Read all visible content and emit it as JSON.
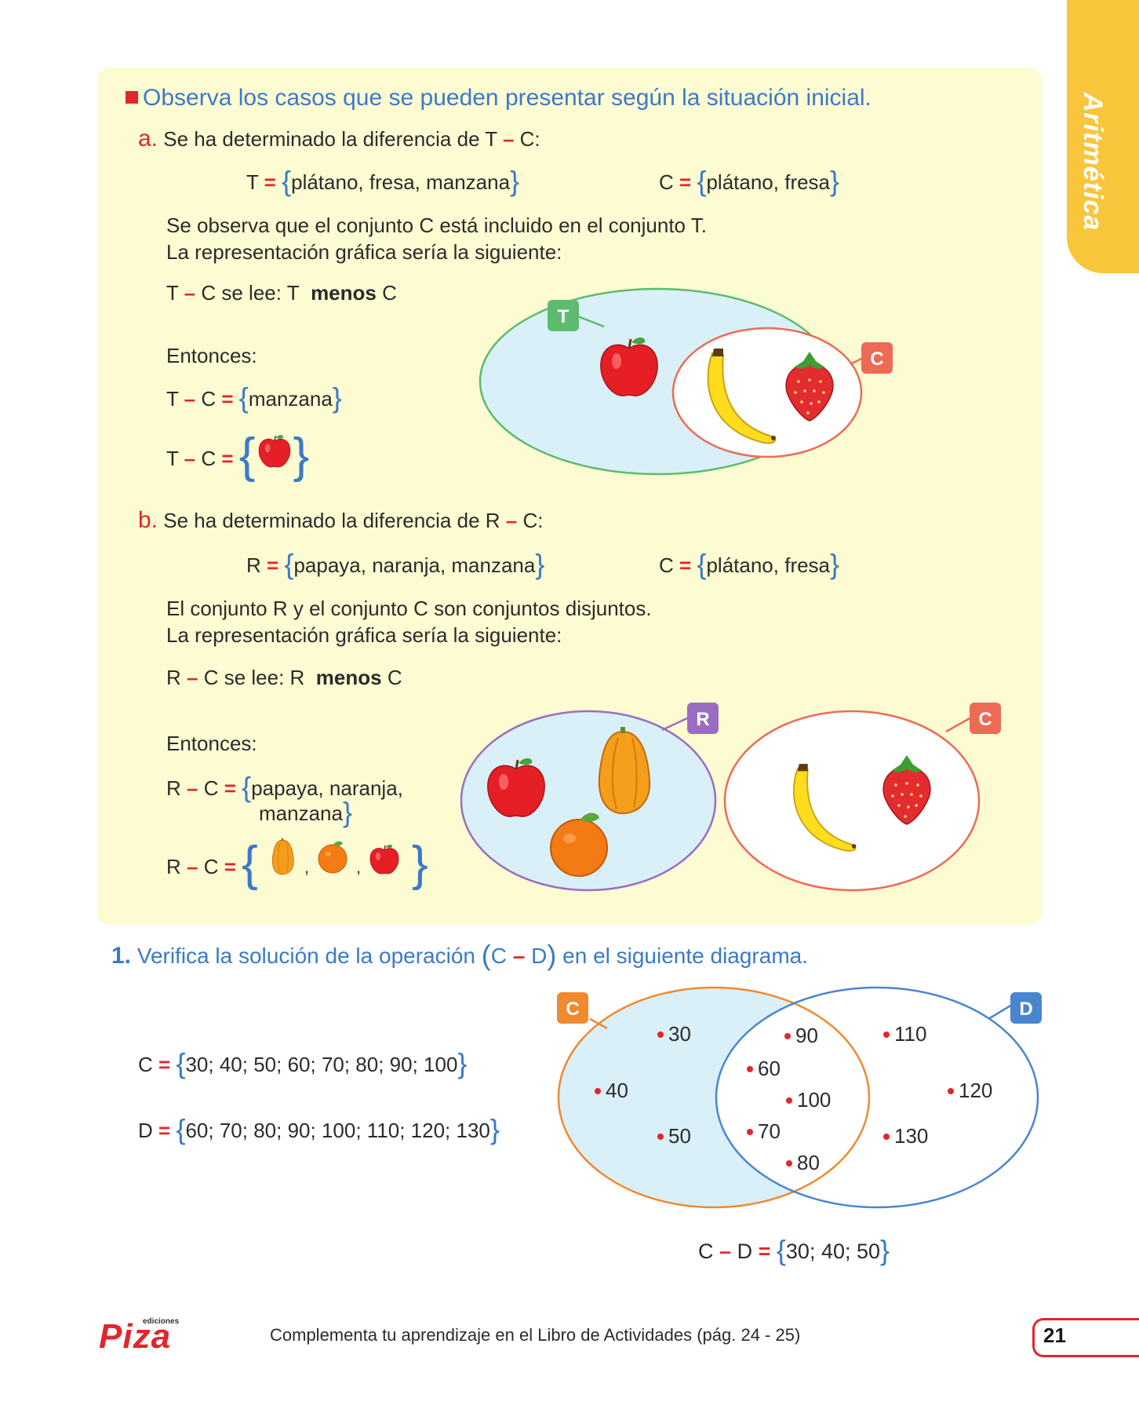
{
  "side_tab": "Aritmética",
  "heading": "Observa los casos que se pueden presentar según la situación inicial.",
  "case_a": {
    "letter": "a.",
    "intro": "Se ha determinado la diferencia de T",
    "intro_end": "C:",
    "set_T_name": "T",
    "set_T_elems": "plátano, fresa, manzana",
    "set_C_name": "C",
    "set_C_elems": "plátano, fresa",
    "obs1": "Se observa que el conjunto C está incluido en el conjunto T.",
    "obs2": "La representación gráfica sería la siguiente:",
    "read_a": "T",
    "read_b": "C se lee: T",
    "read_menos": "menos",
    "read_c": "C",
    "entonces": "Entonces:",
    "res_lhs_a": "T",
    "res_lhs_b": "C",
    "res_elems": "manzana",
    "label_T": "T",
    "label_C": "C"
  },
  "case_b": {
    "letter": "b.",
    "intro": "Se ha determinado la diferencia de R",
    "intro_end": "C:",
    "set_R_name": "R",
    "set_R_elems": "papaya, naranja, manzana",
    "set_C_name": "C",
    "set_C_elems": "plátano, fresa",
    "obs1": "El conjunto R y el conjunto C son conjuntos disjuntos.",
    "obs2": "La representación gráfica sería la siguiente:",
    "read_a": "R",
    "read_b": "C se lee: R",
    "read_menos": "menos",
    "read_c": "C",
    "entonces": "Entonces:",
    "res_lhs_a": "R",
    "res_lhs_b": "C",
    "res_elems_1": "papaya, naranja,",
    "res_elems_2": "manzana",
    "label_R": "R",
    "label_C": "C"
  },
  "exercise": {
    "number": "1.",
    "text_a": "Verifica la solución de la operación",
    "op_a": "C",
    "op_b": "D",
    "text_b": "en el siguiente diagrama.",
    "set_C_name": "C",
    "set_C_elems": "30; 40; 50; 60; 70; 80; 90; 100",
    "set_D_name": "D",
    "set_D_elems": "60; 70; 80; 90; 100; 110; 120; 130",
    "label_C": "C",
    "label_D": "D",
    "only_C": [
      "30",
      "40",
      "50"
    ],
    "both": [
      "90",
      "60",
      "100",
      "70",
      "80"
    ],
    "only_D": [
      "110",
      "120",
      "130"
    ],
    "result_a": "C",
    "result_b": "D",
    "result_elems": "30; 40; 50"
  },
  "footer": {
    "logo": "Piza",
    "logo_sub": "ediciones",
    "text": "Complementa tu aprendizaje en el Libro de Actividades (pág. 24 - 25)",
    "page": "21"
  },
  "colors": {
    "panel": "#fdfbd2",
    "accent_blue": "#3a7ac8",
    "accent_red": "#e2262b",
    "tab_yellow": "#f9c53a",
    "venn_fill": "#d9f0f8",
    "label_T": "#5dbb6f",
    "label_C": "#ee6a55",
    "label_R": "#9b6dc0",
    "label_C2": "#ef8a2e",
    "label_D": "#4a86cf"
  }
}
